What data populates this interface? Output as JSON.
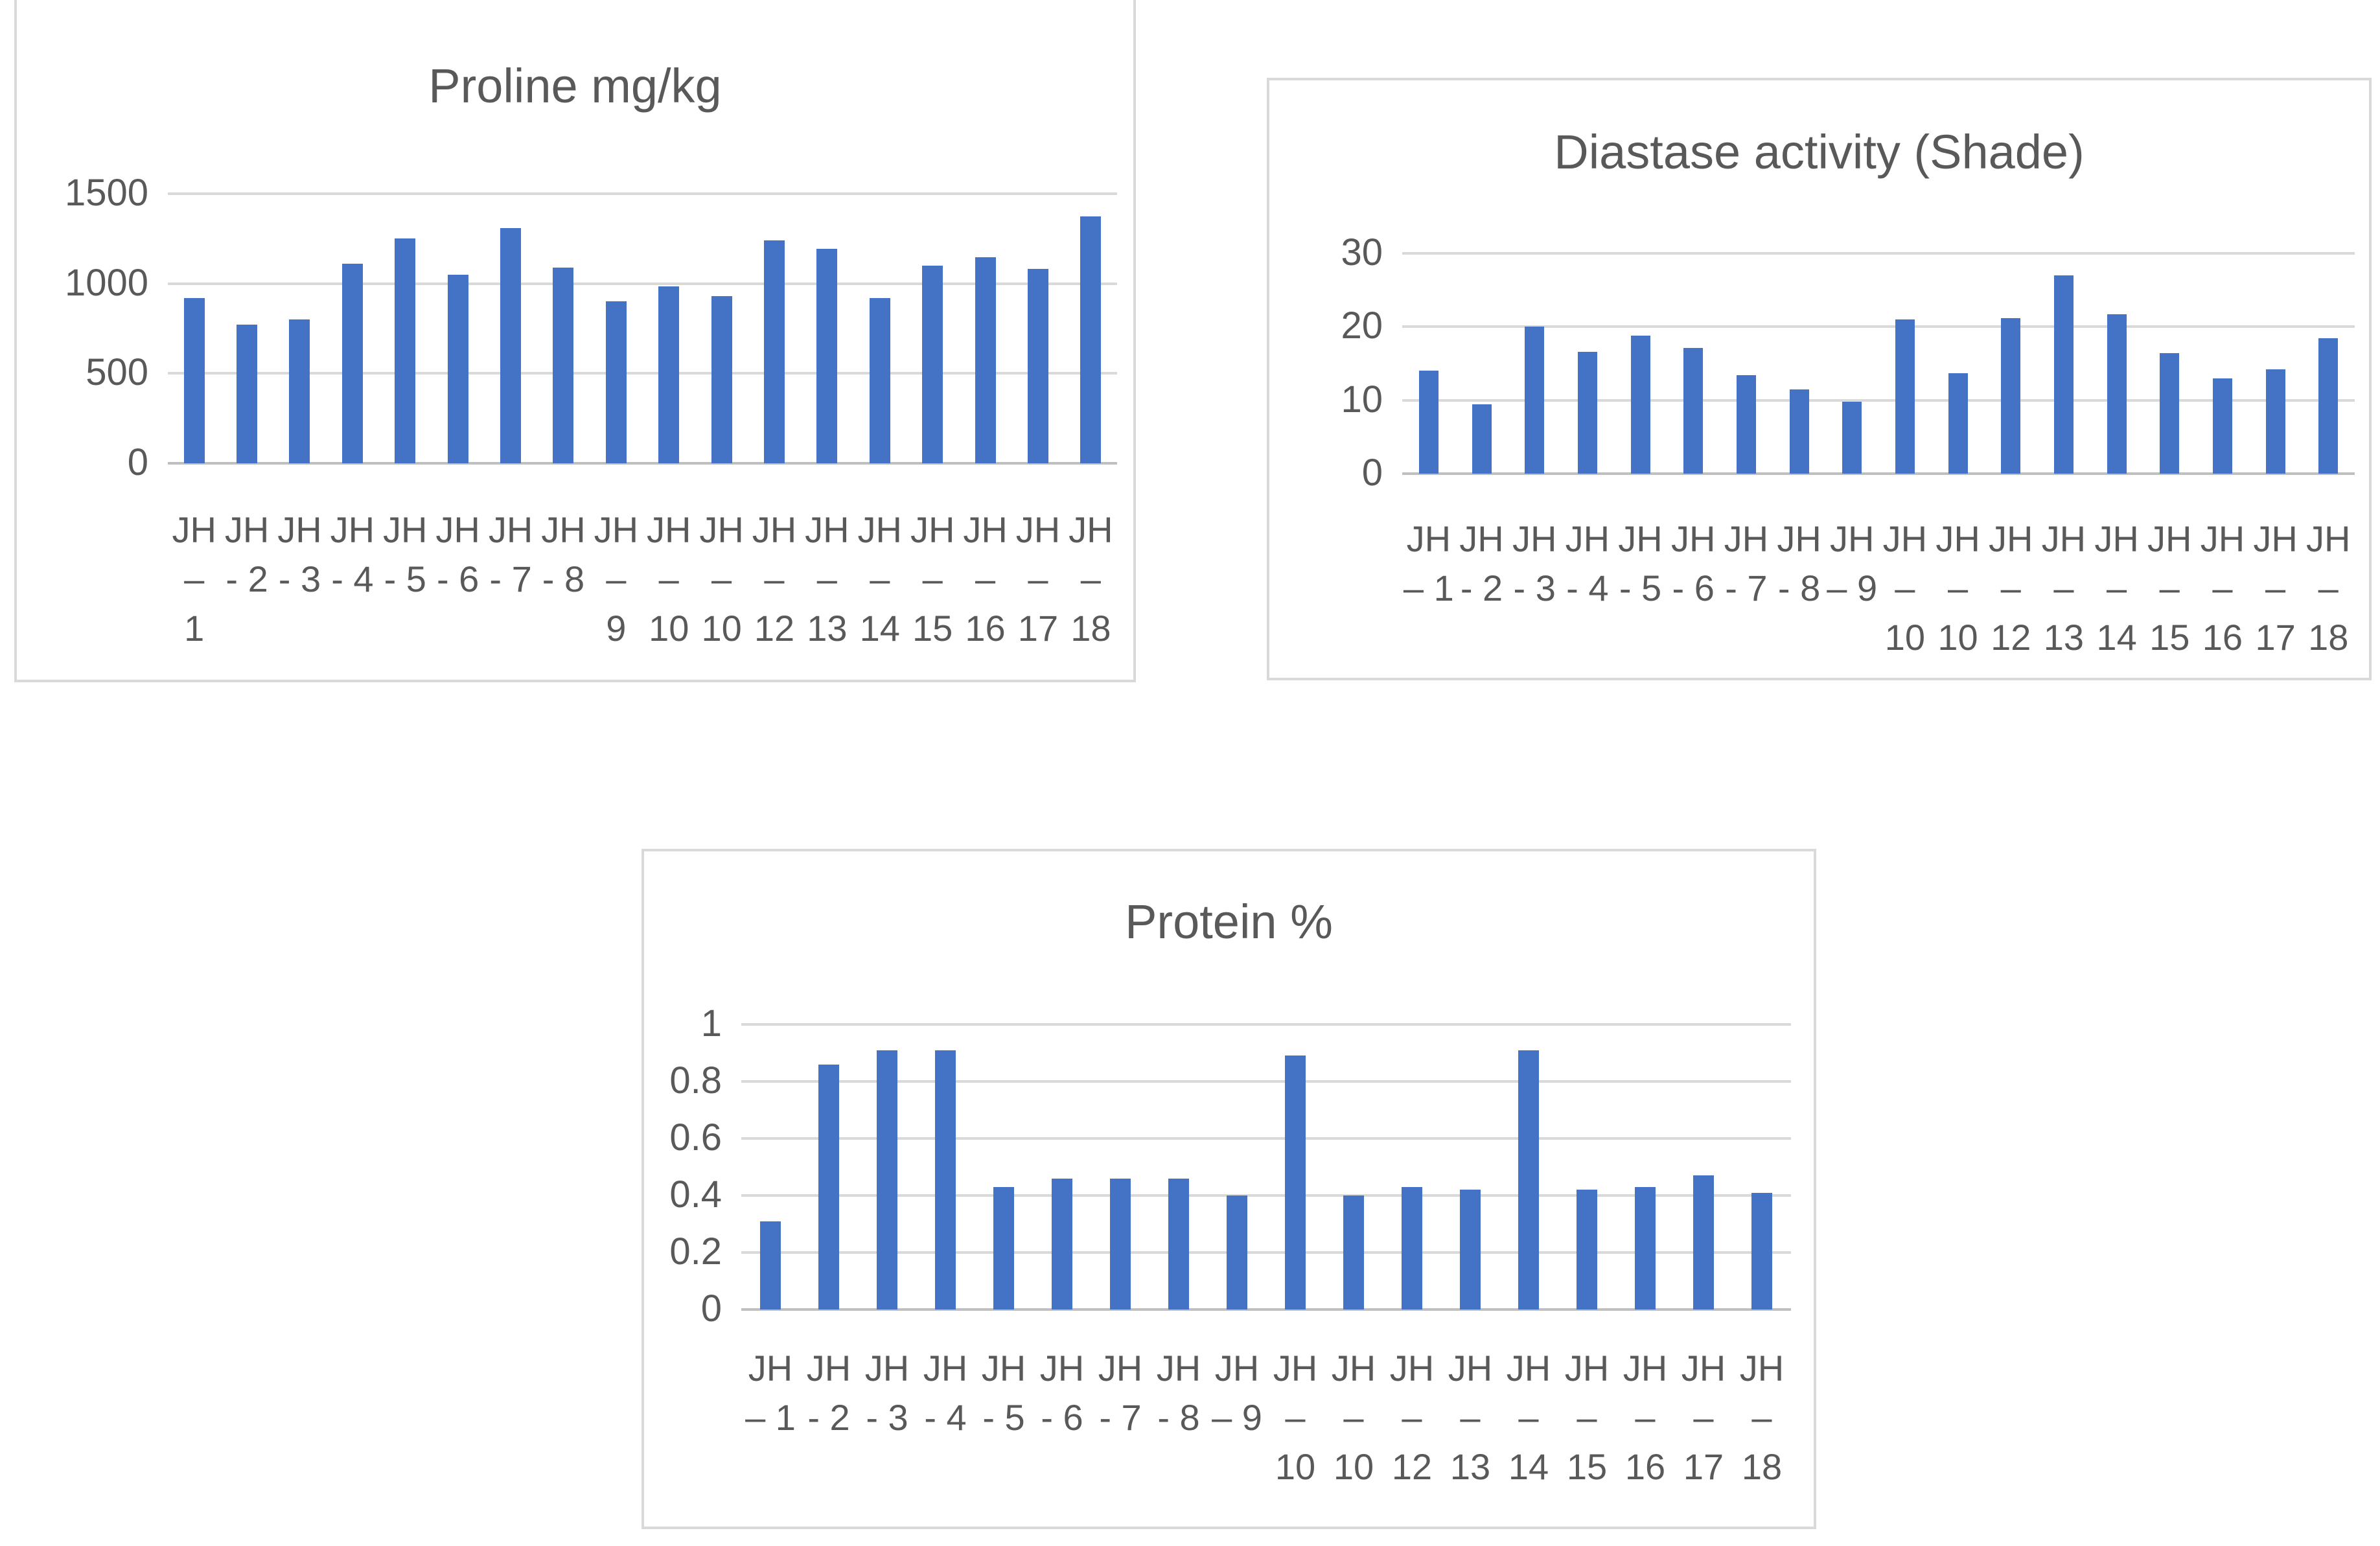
{
  "page": {
    "background": "#ffffff",
    "border_color": "#d9d9d9"
  },
  "chart_data": [
    {
      "id": "proline",
      "type": "bar",
      "title": "Proline mg/kg",
      "ylabel": "",
      "xlabel": "",
      "ylim": [
        0,
        1500
      ],
      "yticks": [
        1500,
        1000,
        500,
        0
      ],
      "ytick_labels": [
        "1500",
        "1000",
        "500",
        "0"
      ],
      "grid": true,
      "legend": "none",
      "bar_color": "#4472c4",
      "gridline_color": "#d9d9d9",
      "axis_color": "#bfbfbf",
      "text_color": "#595959",
      "categories": [
        [
          "JH",
          "–",
          "1"
        ],
        [
          "JH",
          "- 2",
          ""
        ],
        [
          "JH",
          "- 3",
          ""
        ],
        [
          "JH",
          "- 4",
          ""
        ],
        [
          "JH",
          "- 5",
          ""
        ],
        [
          "JH",
          "- 6",
          ""
        ],
        [
          "JH",
          "- 7",
          ""
        ],
        [
          "JH",
          "- 8",
          ""
        ],
        [
          "JH",
          "–",
          "9"
        ],
        [
          "JH",
          "–",
          "10"
        ],
        [
          "JH",
          "–",
          "10"
        ],
        [
          "JH",
          "–",
          "12"
        ],
        [
          "JH",
          "–",
          "13"
        ],
        [
          "JH",
          "–",
          "14"
        ],
        [
          "JH",
          "–",
          "15"
        ],
        [
          "JH",
          "–",
          "16"
        ],
        [
          "JH",
          "–",
          "17"
        ],
        [
          "JH",
          "–",
          "18"
        ]
      ],
      "values": [
        920,
        770,
        800,
        1110,
        1250,
        1050,
        1310,
        1090,
        900,
        985,
        930,
        1240,
        1195,
        920,
        1100,
        1145,
        1080,
        1375
      ]
    },
    {
      "id": "diastase",
      "type": "bar",
      "title": "Diastase activity (Shade)",
      "ylabel": "",
      "xlabel": "",
      "ylim": [
        0,
        30
      ],
      "yticks": [
        30,
        20,
        10,
        0
      ],
      "ytick_labels": [
        "30",
        "20",
        "10",
        "0"
      ],
      "grid": true,
      "legend": "none",
      "bar_color": "#4472c4",
      "gridline_color": "#d9d9d9",
      "axis_color": "#bfbfbf",
      "text_color": "#595959",
      "categories": [
        [
          "JH",
          "– 1",
          ""
        ],
        [
          "JH",
          "- 2",
          ""
        ],
        [
          "JH",
          "- 3",
          ""
        ],
        [
          "JH",
          "- 4",
          ""
        ],
        [
          "JH",
          "- 5",
          ""
        ],
        [
          "JH",
          "- 6",
          ""
        ],
        [
          "JH",
          "- 7",
          ""
        ],
        [
          "JH",
          "- 8",
          ""
        ],
        [
          "JH",
          "– 9",
          ""
        ],
        [
          "JH",
          "–",
          "10"
        ],
        [
          "JH",
          "–",
          "10"
        ],
        [
          "JH",
          "–",
          "12"
        ],
        [
          "JH",
          "–",
          "13"
        ],
        [
          "JH",
          "–",
          "14"
        ],
        [
          "JH",
          "–",
          "15"
        ],
        [
          "JH",
          "–",
          "16"
        ],
        [
          "JH",
          "–",
          "17"
        ],
        [
          "JH",
          "–",
          "18"
        ]
      ],
      "values": [
        14,
        9.4,
        20,
        16.6,
        18.8,
        17.1,
        13.4,
        11.5,
        9.8,
        21,
        13.7,
        21.2,
        27,
        21.7,
        16.4,
        13,
        14.2,
        18.4
      ]
    },
    {
      "id": "protein",
      "type": "bar",
      "title": "Protein %",
      "ylabel": "",
      "xlabel": "",
      "ylim": [
        0,
        1
      ],
      "yticks": [
        1,
        0.8,
        0.6,
        0.4,
        0.2,
        0
      ],
      "ytick_labels": [
        "1",
        "0.8",
        "0.6",
        "0.4",
        "0.2",
        "0"
      ],
      "grid": true,
      "legend": "none",
      "bar_color": "#4472c4",
      "gridline_color": "#d9d9d9",
      "axis_color": "#bfbfbf",
      "text_color": "#595959",
      "categories": [
        [
          "JH",
          "– 1",
          ""
        ],
        [
          "JH",
          "- 2",
          ""
        ],
        [
          "JH",
          "- 3",
          ""
        ],
        [
          "JH",
          "- 4",
          ""
        ],
        [
          "JH",
          "- 5",
          ""
        ],
        [
          "JH",
          "- 6",
          ""
        ],
        [
          "JH",
          "- 7",
          ""
        ],
        [
          "JH",
          "- 8",
          ""
        ],
        [
          "JH",
          "– 9",
          ""
        ],
        [
          "JH",
          "–",
          "10"
        ],
        [
          "JH",
          "–",
          "10"
        ],
        [
          "JH",
          "–",
          "12"
        ],
        [
          "JH",
          "–",
          "13"
        ],
        [
          "JH",
          "–",
          "14"
        ],
        [
          "JH",
          "–",
          "15"
        ],
        [
          "JH",
          "–",
          "16"
        ],
        [
          "JH",
          "–",
          "17"
        ],
        [
          "JH",
          "–",
          "18"
        ]
      ],
      "values": [
        0.31,
        0.86,
        0.91,
        0.91,
        0.43,
        0.46,
        0.46,
        0.46,
        0.4,
        0.89,
        0.4,
        0.43,
        0.42,
        0.91,
        0.42,
        0.43,
        0.47,
        0.41
      ]
    }
  ]
}
